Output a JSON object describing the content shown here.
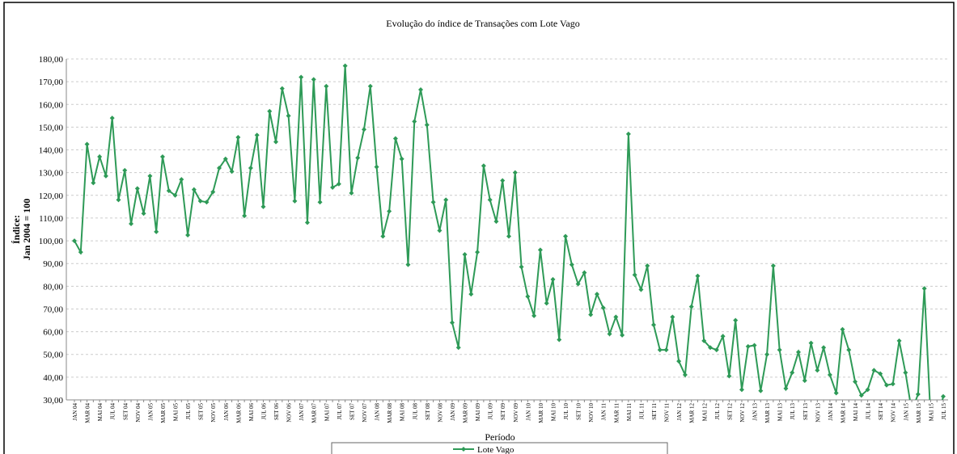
{
  "chart_data": {
    "type": "line",
    "title": "Evolução do índice de Transações com Lote Vago",
    "y_label": [
      "Índice:",
      "Jan 2004 = 100"
    ],
    "x_label": "Período",
    "categories": [
      "JAN 04",
      null,
      "MAR 04",
      null,
      "MAI 04",
      null,
      "JUL 04",
      null,
      "SET 04",
      null,
      "NOV 04",
      null,
      "JAN 05",
      null,
      "MAR 05",
      null,
      "MAI 05",
      null,
      "JUL 05",
      null,
      "SET 05",
      null,
      "NOV 05",
      null,
      "JAN 06",
      null,
      "MAR 06",
      null,
      "MAI 06",
      null,
      "JUL 06",
      null,
      "SET 06",
      null,
      "NOV 06",
      null,
      "JAN 07",
      null,
      "MAR 07",
      null,
      "MAI 07",
      null,
      "JUL 07",
      null,
      "SET 07",
      null,
      "NOV 07",
      null,
      "JAN 08",
      null,
      "MAR 08",
      null,
      "MAI 08",
      null,
      "JUL 08",
      null,
      "SET 08",
      null,
      "NOV 08",
      null,
      "JAN 09",
      null,
      "MAR 09",
      null,
      "MAI 09",
      null,
      "JUL 09",
      null,
      "SET 09",
      null,
      "NOV 09",
      null,
      "JAN 10",
      null,
      "MAR 10",
      null,
      "MAI 10",
      null,
      "JUL 10",
      null,
      "SET 10",
      null,
      "NOV 10",
      null,
      "JAN 11",
      null,
      "MAR 11",
      null,
      "MAI 11",
      null,
      "JUL 11",
      null,
      "SET 11",
      null,
      "NOV 11",
      null,
      "JAN 12",
      null,
      "MAR 12",
      null,
      "MAI 12",
      null,
      "JUL 12",
      null,
      "SET 12",
      null,
      "NOV 12",
      null,
      "JAN 13",
      null,
      "MAR 13",
      null,
      "MAI 13",
      null,
      "JUL 13",
      null,
      "SET 13",
      null,
      "NOV 13",
      null,
      "JAN 14",
      null,
      "MAR 14",
      null,
      "MAI 14",
      null,
      "JUL 14",
      null,
      "SET 14",
      null,
      "NOV 14",
      null,
      "JAN 15",
      null,
      "MAR 15",
      null,
      "MAI 15",
      null,
      "JUL 15"
    ],
    "series": [
      {
        "name": "Lote Vago",
        "color": "#2e9a57",
        "values": [
          100,
          95,
          142.5,
          125.5,
          137,
          128.5,
          154,
          118,
          131,
          107.5,
          123,
          112,
          128.5,
          104,
          137,
          122,
          120,
          127,
          102.5,
          122.5,
          117.5,
          117,
          121.5,
          132,
          136,
          130.5,
          145.5,
          111,
          132,
          146.5,
          115,
          157,
          143.5,
          167,
          155,
          117.5,
          172,
          108,
          171,
          117,
          168,
          123.5,
          125,
          177,
          121,
          136.5,
          149,
          168,
          132.5,
          102,
          113,
          145,
          136,
          89.5,
          152.5,
          166.5,
          151,
          117,
          104.5,
          118,
          64,
          53,
          94,
          76.5,
          95,
          133,
          118,
          108.5,
          126.5,
          102,
          130,
          88.5,
          75.5,
          67,
          96,
          72.5,
          83,
          56.5,
          102,
          89.5,
          81,
          86,
          67.5,
          76.5,
          70.5,
          59,
          66.5,
          58.5,
          147,
          85,
          78.5,
          89,
          63,
          52,
          52,
          66.5,
          47,
          41,
          71,
          84.5,
          56,
          53,
          52,
          58,
          40.5,
          65,
          34.5,
          53.5,
          54,
          34,
          50,
          89,
          52,
          35,
          42,
          51,
          38.5,
          55,
          43,
          53,
          41,
          33,
          61,
          52,
          38,
          32,
          34.5,
          43,
          41.5,
          36.5,
          37,
          56,
          42,
          25,
          32.5,
          79,
          22,
          20,
          31.5
        ]
      }
    ],
    "ylim": [
      30,
      180
    ],
    "yticks": [
      {
        "value": 30,
        "label": "30,00"
      },
      {
        "value": 40,
        "label": "40,00"
      },
      {
        "value": 50,
        "label": "50,00"
      },
      {
        "value": 60,
        "label": "60,00"
      },
      {
        "value": 70,
        "label": "70,00"
      },
      {
        "value": 80,
        "label": "80,00"
      },
      {
        "value": 90,
        "label": "90,00"
      },
      {
        "value": 100,
        "label": "100,00"
      },
      {
        "value": 110,
        "label": "110,00"
      },
      {
        "value": 120,
        "label": "120,00"
      },
      {
        "value": 130,
        "label": "130,00"
      },
      {
        "value": 140,
        "label": "140,00"
      },
      {
        "value": 150,
        "label": "150,00"
      },
      {
        "value": 160,
        "label": "160,00"
      },
      {
        "value": 170,
        "label": "170,00"
      },
      {
        "value": 180,
        "label": "180,00"
      }
    ],
    "grid": true
  }
}
